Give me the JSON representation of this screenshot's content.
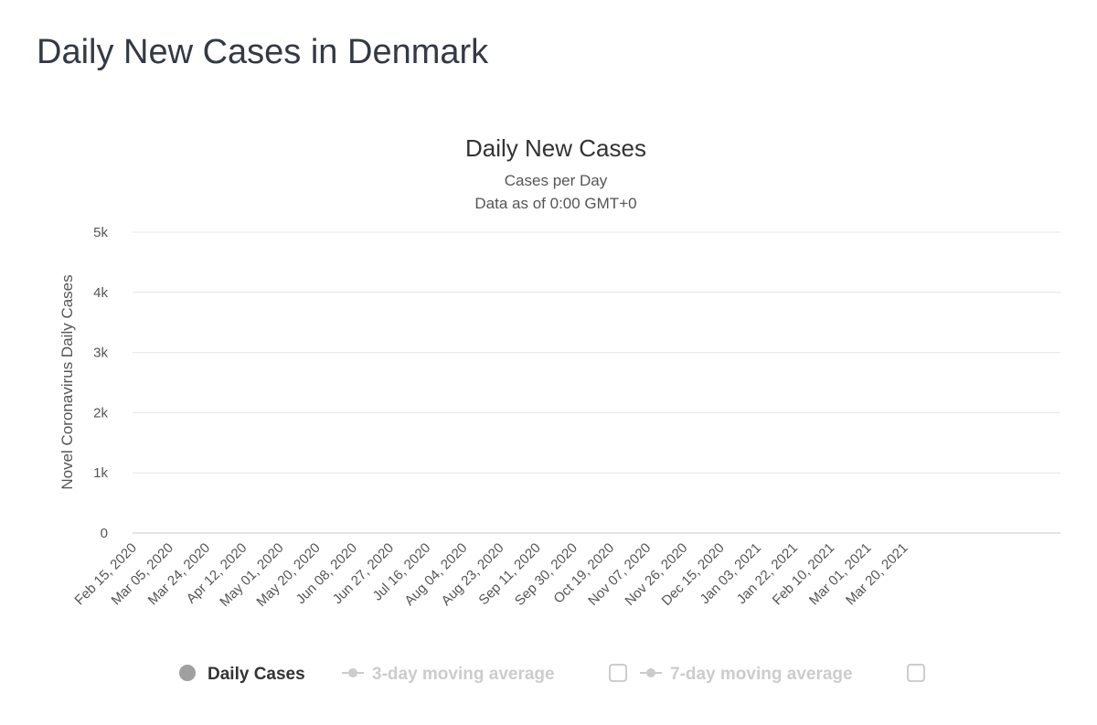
{
  "page": {
    "title": "Daily New Cases in Denmark"
  },
  "chart_data": {
    "type": "bar",
    "title": "Daily New Cases",
    "subtitle": "Cases per Day",
    "subtitle2": "Data as of 0:00 GMT+0",
    "ylabel": "Novel Coronavirus Daily Cases",
    "xlabel": "",
    "ylim": [
      0,
      5000
    ],
    "y_ticks": [
      {
        "value": 0,
        "label": "0"
      },
      {
        "value": 1000,
        "label": "1k"
      },
      {
        "value": 2000,
        "label": "2k"
      },
      {
        "value": 3000,
        "label": "3k"
      },
      {
        "value": 4000,
        "label": "4k"
      },
      {
        "value": 5000,
        "label": "5k"
      }
    ],
    "x_tick_labels": [
      "Feb 15, 2020",
      "Mar 05, 2020",
      "Mar 24, 2020",
      "Apr 12, 2020",
      "May 01, 2020",
      "May 20, 2020",
      "Jun 08, 2020",
      "Jun 27, 2020",
      "Jul 16, 2020",
      "Aug 04, 2020",
      "Aug 23, 2020",
      "Sep 11, 2020",
      "Sep 30, 2020",
      "Oct 19, 2020",
      "Nov 07, 2020",
      "Nov 26, 2020",
      "Dec 15, 2020",
      "Jan 03, 2021",
      "Jan 22, 2021",
      "Feb 10, 2021",
      "Mar 01, 2021",
      "Mar 20, 2021"
    ],
    "grid": true,
    "bar_color": "#a0a0a0",
    "series": [
      {
        "name": "Daily Cases",
        "values": [
          0,
          0,
          0,
          0,
          0,
          0,
          0,
          0,
          0,
          0,
          0,
          0,
          0,
          0,
          0,
          0,
          0,
          0,
          0,
          0,
          0,
          0,
          0,
          0,
          0,
          0,
          0,
          0,
          0,
          0,
          0,
          0,
          0,
          0,
          0,
          0,
          0,
          0,
          0,
          0,
          0,
          0,
          0,
          0,
          0,
          0,
          0,
          0,
          0,
          0,
          0,
          0,
          0,
          0,
          0,
          0,
          0,
          0,
          0,
          0,
          0,
          0,
          0,
          0,
          0,
          0,
          0,
          0,
          0,
          0,
          0,
          0,
          0,
          0,
          0,
          0,
          0,
          0,
          0,
          0,
          0,
          0,
          0,
          0,
          0,
          0,
          0,
          0,
          0,
          0,
          0,
          0,
          0,
          0,
          0,
          0,
          0,
          0,
          0,
          0,
          0,
          0,
          0,
          0,
          0,
          0,
          0,
          0,
          0,
          0,
          0,
          0,
          0,
          0,
          0,
          0,
          0,
          0,
          0,
          0,
          0,
          0,
          0,
          0,
          0,
          0,
          0,
          0,
          0,
          0,
          0,
          0,
          0,
          0,
          0,
          0,
          0,
          0,
          0,
          0,
          0,
          0,
          0,
          0,
          0,
          0,
          0,
          0,
          0,
          0,
          0,
          0,
          0,
          0,
          0,
          0,
          0,
          0,
          0,
          0,
          0,
          0,
          0,
          0,
          0,
          0,
          0,
          0,
          0,
          0,
          0,
          0,
          0,
          0,
          0,
          0,
          0,
          0,
          0,
          0,
          0,
          0,
          0,
          0,
          0,
          0,
          0,
          0,
          0,
          0,
          0,
          0,
          0,
          0,
          0,
          0,
          0,
          0,
          0,
          0,
          0,
          0,
          0,
          0,
          0,
          0,
          0,
          0,
          0,
          0,
          0,
          0,
          0,
          0,
          0,
          0,
          0,
          0,
          0,
          0,
          0,
          0,
          0,
          0,
          0,
          0,
          0,
          0,
          0,
          0,
          0,
          0,
          0,
          0,
          0,
          0,
          0,
          0,
          0,
          0,
          0,
          0,
          0,
          0,
          0,
          0,
          0,
          0,
          0,
          0,
          0,
          0,
          0,
          0,
          0,
          0,
          0,
          0,
          0,
          0,
          0,
          0,
          0,
          0,
          0,
          0,
          0,
          0,
          0,
          0,
          0,
          0,
          0,
          0,
          0,
          0,
          0,
          0,
          0,
          0,
          0,
          0,
          0,
          0,
          0,
          0,
          0,
          0,
          0,
          0,
          0,
          0,
          0,
          0,
          0,
          0,
          0,
          0,
          0,
          0,
          0,
          0,
          0,
          0,
          0,
          0,
          0,
          0,
          0,
          0,
          0,
          0,
          0,
          0,
          0,
          0,
          0,
          0,
          0,
          0,
          0,
          0,
          0,
          0,
          0,
          0,
          0,
          0,
          0,
          0,
          0,
          0,
          0,
          0,
          0,
          0,
          0,
          0,
          0,
          0,
          0,
          0,
          0,
          0,
          0,
          0,
          0,
          0,
          0,
          0,
          0,
          0,
          0,
          0,
          0,
          0,
          0,
          0,
          0,
          0,
          0,
          0,
          0,
          0,
          0,
          0,
          0,
          0,
          0,
          0,
          0,
          0,
          0,
          0,
          0,
          0,
          0,
          0,
          0,
          0,
          0,
          0,
          0,
          0,
          0,
          0,
          0,
          0,
          0,
          0,
          0,
          0,
          0,
          0,
          0,
          0,
          0,
          0,
          0,
          0,
          0,
          0,
          0,
          0,
          0,
          0,
          0,
          0,
          0,
          0,
          0,
          0,
          0,
          0,
          0,
          0,
          0,
          0,
          0,
          0,
          0,
          0,
          0,
          0,
          0,
          0,
          0,
          0,
          0,
          0,
          0,
          0,
          0,
          0,
          0,
          0,
          0,
          0,
          0,
          0,
          0,
          0,
          0,
          0,
          0,
          0,
          0,
          0,
          0,
          0,
          0,
          0,
          0,
          0,
          0,
          0,
          0,
          0,
          0,
          0,
          0,
          0,
          0,
          0,
          0,
          0,
          0,
          0,
          0,
          0,
          0,
          0,
          0,
          0,
          0,
          0,
          0,
          0,
          0,
          0
        ]
      }
    ],
    "legend": [
      {
        "label": "Daily Cases",
        "active": true,
        "color": "#a0a0a0"
      },
      {
        "label": "3-day moving average",
        "active": false,
        "color": "#cccccc"
      },
      {
        "label": "7-day moving average",
        "active": false,
        "color": "#cccccc"
      }
    ]
  }
}
